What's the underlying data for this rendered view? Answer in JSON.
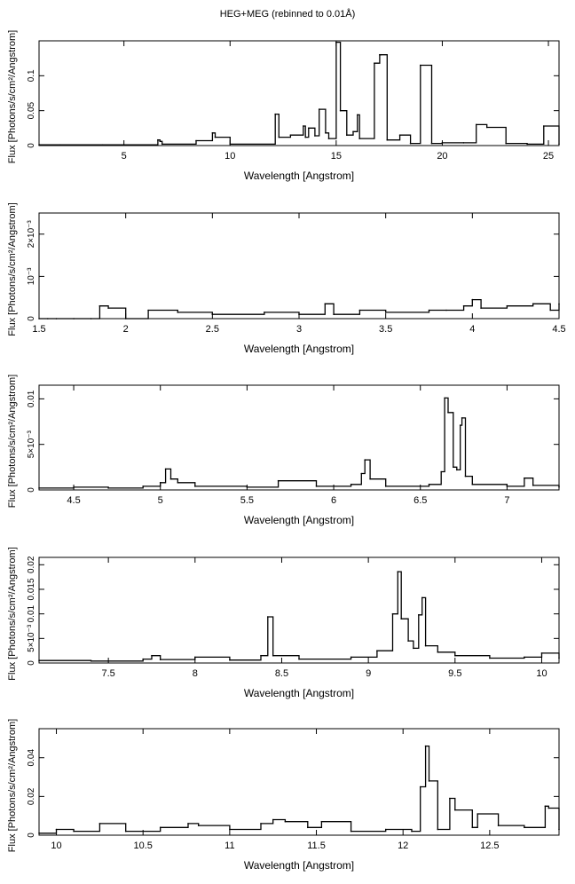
{
  "figure": {
    "title": "HEG+MEG (rebinned to 0.01Å)"
  },
  "chart_data": [
    {
      "type": "line",
      "step": true,
      "xlabel": "Wavelength [Angstrom]",
      "ylabel": "Flux [Photons/s/cm²/Angstrom]",
      "xlim": [
        1.0,
        25.5
      ],
      "ylim": [
        0.0,
        0.15
      ],
      "xticks": [
        {
          "v": 5,
          "label": "5"
        },
        {
          "v": 10,
          "label": "10"
        },
        {
          "v": 15,
          "label": "15"
        },
        {
          "v": 20,
          "label": "20"
        },
        {
          "v": 25,
          "label": "25"
        }
      ],
      "yticks": [
        {
          "v": 0,
          "label": "0"
        },
        {
          "v": 0.05,
          "label": "0.05"
        },
        {
          "v": 0.1,
          "label": "0.1"
        }
      ],
      "x": [
        1.0,
        2.0,
        4.0,
        6.6,
        6.7,
        6.8,
        8.4,
        9.17,
        9.3,
        10.0,
        12.13,
        12.3,
        12.85,
        13.45,
        13.55,
        13.7,
        14.0,
        14.2,
        14.5,
        14.65,
        15.0,
        15.2,
        15.5,
        15.8,
        16.0,
        16.1,
        16.8,
        17.05,
        17.1,
        17.4,
        18.0,
        18.5,
        18.97,
        19.5,
        20.0,
        21.0,
        21.6,
        22.1,
        23.0,
        24.0,
        24.78,
        25.5
      ],
      "y": [
        0.001,
        0.001,
        0.001,
        0.008,
        0.006,
        0.002,
        0.007,
        0.018,
        0.012,
        0.002,
        0.045,
        0.012,
        0.015,
        0.028,
        0.012,
        0.025,
        0.014,
        0.052,
        0.018,
        0.01,
        0.148,
        0.05,
        0.015,
        0.02,
        0.044,
        0.01,
        0.118,
        0.13,
        0.13,
        0.008,
        0.015,
        0.003,
        0.115,
        0.003,
        0.004,
        0.004,
        0.03,
        0.026,
        0.003,
        0.002,
        0.028,
        0.002
      ]
    },
    {
      "type": "line",
      "step": true,
      "xlabel": "Wavelength [Angstrom]",
      "ylabel": "Flux [Photons/s/cm²/Angstrom]",
      "xlim": [
        1.5,
        4.5
      ],
      "ylim": [
        0.0,
        0.0025
      ],
      "xticks": [
        {
          "v": 1.5,
          "label": "1.5"
        },
        {
          "v": 2,
          "label": "2"
        },
        {
          "v": 2.5,
          "label": "2.5"
        },
        {
          "v": 3,
          "label": "3"
        },
        {
          "v": 3.5,
          "label": "3.5"
        },
        {
          "v": 4,
          "label": "4"
        },
        {
          "v": 4.5,
          "label": "4.5"
        }
      ],
      "yticks": [
        {
          "v": 0,
          "label": "0"
        },
        {
          "v": 0.001,
          "label": "10⁻³"
        },
        {
          "v": 0.002,
          "label": "2×10⁻³"
        }
      ],
      "x": [
        1.5,
        1.55,
        1.6,
        1.7,
        1.8,
        1.85,
        1.9,
        2.0,
        2.13,
        2.3,
        2.5,
        2.8,
        3.0,
        3.15,
        3.2,
        3.35,
        3.5,
        3.75,
        3.85,
        3.95,
        4.0,
        4.05,
        4.2,
        4.35,
        4.45,
        4.5
      ],
      "y": [
        0.0,
        0.0,
        0.0,
        0.0,
        0.0,
        0.0003,
        0.00025,
        0.0,
        0.0002,
        0.00015,
        0.0001,
        0.00015,
        0.0001,
        0.00035,
        0.0001,
        0.0002,
        0.00015,
        0.0002,
        0.0002,
        0.0003,
        0.00045,
        0.00025,
        0.0003,
        0.00035,
        0.0002,
        0.00035
      ]
    },
    {
      "type": "line",
      "step": true,
      "xlabel": "Wavelength [Angstrom]",
      "ylabel": "Flux [Photons/s/cm²/Angstrom]",
      "xlim": [
        4.3,
        7.3
      ],
      "ylim": [
        0.0,
        0.0115
      ],
      "xticks": [
        {
          "v": 4.5,
          "label": "4.5"
        },
        {
          "v": 5,
          "label": "5"
        },
        {
          "v": 5.5,
          "label": "5.5"
        },
        {
          "v": 6,
          "label": "6"
        },
        {
          "v": 6.5,
          "label": "6.5"
        },
        {
          "v": 7,
          "label": "7"
        }
      ],
      "yticks": [
        {
          "v": 0,
          "label": "0"
        },
        {
          "v": 0.005,
          "label": "5×10⁻³"
        },
        {
          "v": 0.01,
          "label": "0.01"
        }
      ],
      "x": [
        4.3,
        4.5,
        4.7,
        4.9,
        5.0,
        5.03,
        5.06,
        5.1,
        5.2,
        5.5,
        5.68,
        5.9,
        6.1,
        6.16,
        6.18,
        6.21,
        6.3,
        6.55,
        6.62,
        6.64,
        6.66,
        6.69,
        6.71,
        6.73,
        6.74,
        6.76,
        6.8,
        7.0,
        7.1,
        7.15,
        7.3
      ],
      "y": [
        0.0002,
        0.0003,
        0.0002,
        0.0004,
        0.0008,
        0.0023,
        0.0012,
        0.0008,
        0.0004,
        0.0003,
        0.001,
        0.0004,
        0.0006,
        0.0018,
        0.0033,
        0.0012,
        0.0004,
        0.0006,
        0.002,
        0.0101,
        0.0085,
        0.0025,
        0.0022,
        0.0071,
        0.0079,
        0.0015,
        0.0006,
        0.0004,
        0.0013,
        0.0005,
        0.0003
      ]
    },
    {
      "type": "line",
      "step": true,
      "xlabel": "Wavelength [Angstrom]",
      "ylabel": "Flux [Photons/s/cm²/Angstrom]",
      "xlim": [
        7.1,
        10.1
      ],
      "ylim": [
        0.0,
        0.0215
      ],
      "xticks": [
        {
          "v": 7.5,
          "label": "7.5"
        },
        {
          "v": 8,
          "label": "8"
        },
        {
          "v": 8.5,
          "label": "8.5"
        },
        {
          "v": 9,
          "label": "9"
        },
        {
          "v": 9.5,
          "label": "9.5"
        },
        {
          "v": 10,
          "label": "10"
        }
      ],
      "yticks": [
        {
          "v": 0,
          "label": "0"
        },
        {
          "v": 0.005,
          "label": "5×10⁻³"
        },
        {
          "v": 0.01,
          "label": "0.01"
        },
        {
          "v": 0.015,
          "label": "0.015"
        },
        {
          "v": 0.02,
          "label": "0.02"
        }
      ],
      "x": [
        7.1,
        7.4,
        7.7,
        7.75,
        7.8,
        8.0,
        8.2,
        8.38,
        8.42,
        8.45,
        8.6,
        8.9,
        9.05,
        9.14,
        9.17,
        9.19,
        9.23,
        9.26,
        9.29,
        9.31,
        9.33,
        9.4,
        9.5,
        9.7,
        9.9,
        10.0,
        10.1
      ],
      "y": [
        0.0005,
        0.0004,
        0.0008,
        0.0015,
        0.0007,
        0.0012,
        0.0006,
        0.0015,
        0.0094,
        0.0015,
        0.0008,
        0.0012,
        0.0025,
        0.01,
        0.0186,
        0.009,
        0.0045,
        0.003,
        0.0098,
        0.0133,
        0.0035,
        0.0022,
        0.0015,
        0.001,
        0.0012,
        0.002,
        0.001
      ]
    },
    {
      "type": "line",
      "step": true,
      "xlabel": "Wavelength [Angstrom]",
      "ylabel": "Flux [Photons/s/cm²/Angstrom]",
      "xlim": [
        9.9,
        12.9
      ],
      "ylim": [
        0.0,
        0.055
      ],
      "xticks": [
        {
          "v": 10,
          "label": "10"
        },
        {
          "v": 10.5,
          "label": "10.5"
        },
        {
          "v": 11,
          "label": "11"
        },
        {
          "v": 11.5,
          "label": "11.5"
        },
        {
          "v": 12,
          "label": "12"
        },
        {
          "v": 12.5,
          "label": "12.5"
        }
      ],
      "yticks": [
        {
          "v": 0,
          "label": "0"
        },
        {
          "v": 0.02,
          "label": "0.02"
        },
        {
          "v": 0.04,
          "label": "0.04"
        }
      ],
      "x": [
        9.9,
        10.0,
        10.1,
        10.25,
        10.4,
        10.6,
        10.76,
        10.82,
        11.0,
        11.18,
        11.25,
        11.32,
        11.45,
        11.53,
        11.7,
        11.9,
        12.05,
        12.1,
        12.13,
        12.15,
        12.2,
        12.27,
        12.3,
        12.4,
        12.43,
        12.55,
        12.7,
        12.82,
        12.84,
        12.9
      ],
      "y": [
        0.001,
        0.003,
        0.002,
        0.006,
        0.002,
        0.004,
        0.006,
        0.005,
        0.003,
        0.006,
        0.008,
        0.007,
        0.004,
        0.007,
        0.002,
        0.003,
        0.002,
        0.025,
        0.046,
        0.028,
        0.003,
        0.019,
        0.013,
        0.004,
        0.011,
        0.005,
        0.004,
        0.015,
        0.014,
        0.003
      ]
    }
  ]
}
